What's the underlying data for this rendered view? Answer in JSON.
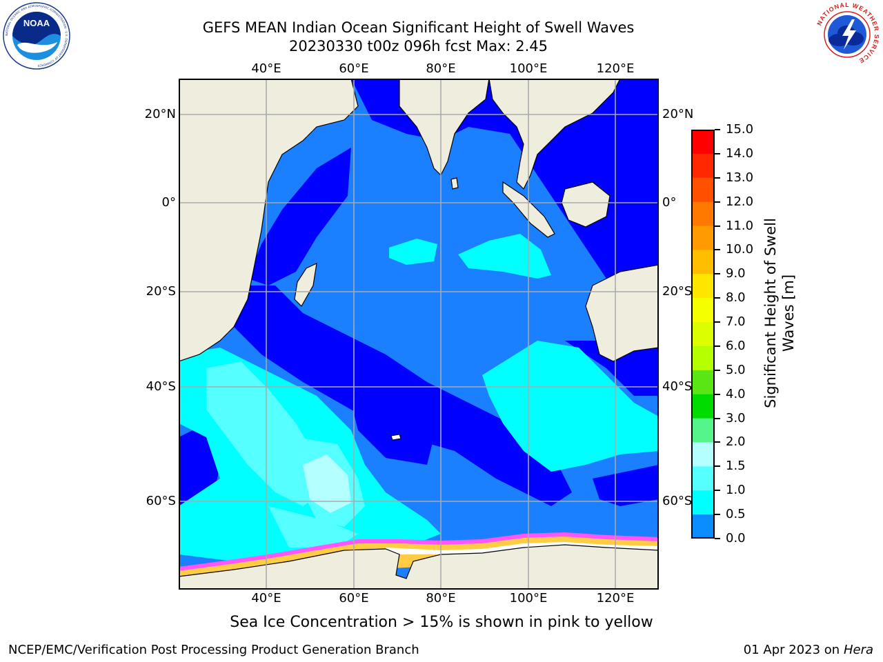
{
  "title": {
    "line1": "GEFS MEAN Indian Ocean Significant Height of Swell Waves",
    "line2": "20230330 t00z 096h fcst   Max: 2.45"
  },
  "logos": {
    "left": {
      "icon": "noaa-logo",
      "text": "NOAA",
      "ring_text": "NATIONAL OCEANIC AND ATMOSPHERIC ADMINISTRATION · U.S. DEPARTMENT OF COMMERCE"
    },
    "right": {
      "icon": "nws-logo",
      "ring_text": "NATIONAL WEATHER SERVICE"
    }
  },
  "axes": {
    "lon_ticks_top": [
      "40°E",
      "60°E",
      "80°E",
      "100°E",
      "120°E"
    ],
    "lon_ticks_bottom": [
      "40°E",
      "60°E",
      "80°E",
      "100°E",
      "120°E"
    ],
    "lat_ticks_left": [
      "20°N",
      "0°",
      "20°S",
      "40°S",
      "60°S"
    ],
    "lat_ticks_right": [
      "20°N",
      "0°",
      "20°S",
      "40°S",
      "60°S"
    ]
  },
  "colorbar": {
    "label_line1": "Significant Height of Swell",
    "label_line2": "Waves [m]",
    "ticks": [
      "15.0",
      "14.0",
      "13.0",
      "12.0",
      "11.0",
      "10.0",
      "9.0",
      "8.0",
      "7.0",
      "6.0",
      "5.0",
      "4.0",
      "3.0",
      "2.0",
      "1.5",
      "1.0",
      "0.5",
      "0.0"
    ],
    "colors": [
      "#ff0000",
      "#ff2800",
      "#ff5000",
      "#ff7800",
      "#ff9b00",
      "#ffbe00",
      "#ffe600",
      "#f5ff00",
      "#dcff00",
      "#b4ff00",
      "#5ae614",
      "#00dc00",
      "#55f58c",
      "#b4ffff",
      "#55ffff",
      "#00ffff",
      "#0a8cff",
      "#0000ff"
    ]
  },
  "map_colors": {
    "land": "#eeedde",
    "ocean_deep": "#0000ff",
    "ocean_mid": "#1a80ff",
    "ocean_light": "#00ffff",
    "ocean_pale": "#55ffff",
    "ocean_palest": "#b4ffff",
    "ice": "#ffffff",
    "ice_edge_pink": "#ff55ff",
    "ice_edge_yellow": "#ffcc44",
    "grid": "#aaaaaa"
  },
  "caption": "Sea Ice Concentration > 15% is shown in pink to yellow",
  "footer": {
    "left": "NCEP/EMC/Verification Post Processing Product Generation Branch",
    "right_date": "01 Apr 2023 on ",
    "right_machine": "Hera"
  }
}
